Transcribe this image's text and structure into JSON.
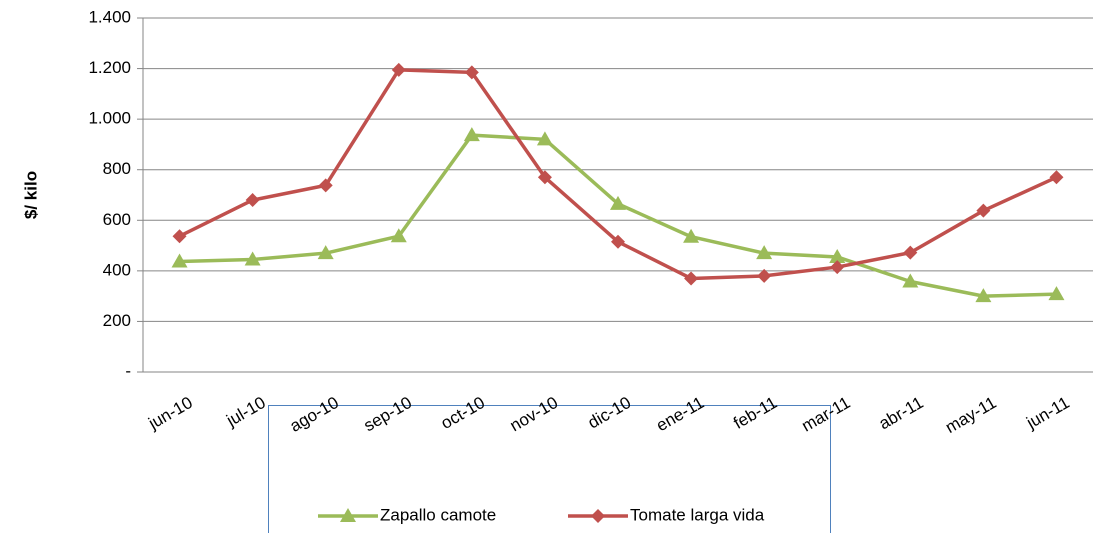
{
  "chart_data": {
    "type": "line",
    "y_label": "$/ kilo",
    "categories": [
      "jun-10",
      "jul-10",
      "ago-10",
      "sep-10",
      "oct-10",
      "nov-10",
      "dic-10",
      "ene-11",
      "feb-11",
      "mar-11",
      "abr-11",
      "may-11",
      "jun-11"
    ],
    "series": [
      {
        "name": "Zapallo camote",
        "color": "#9bbb59",
        "marker": "triangle",
        "values": [
          437,
          445,
          470,
          537,
          937,
          920,
          665,
          535,
          470,
          455,
          358,
          300,
          308
        ]
      },
      {
        "name": "Tomate larga vida",
        "color": "#c0504d",
        "marker": "diamond",
        "values": [
          537,
          680,
          738,
          1195,
          1185,
          770,
          515,
          370,
          380,
          415,
          472,
          638,
          770
        ]
      }
    ],
    "ylim": [
      0,
      1400
    ],
    "yticks": [
      {
        "value": 0,
        "label": "-"
      },
      200,
      400,
      600,
      800,
      {
        "value": 1000,
        "label": "1.000"
      },
      {
        "value": 1200,
        "label": "1.200"
      },
      {
        "value": 1400,
        "label": "1.400"
      }
    ],
    "grid": true,
    "legend": "bottom"
  }
}
